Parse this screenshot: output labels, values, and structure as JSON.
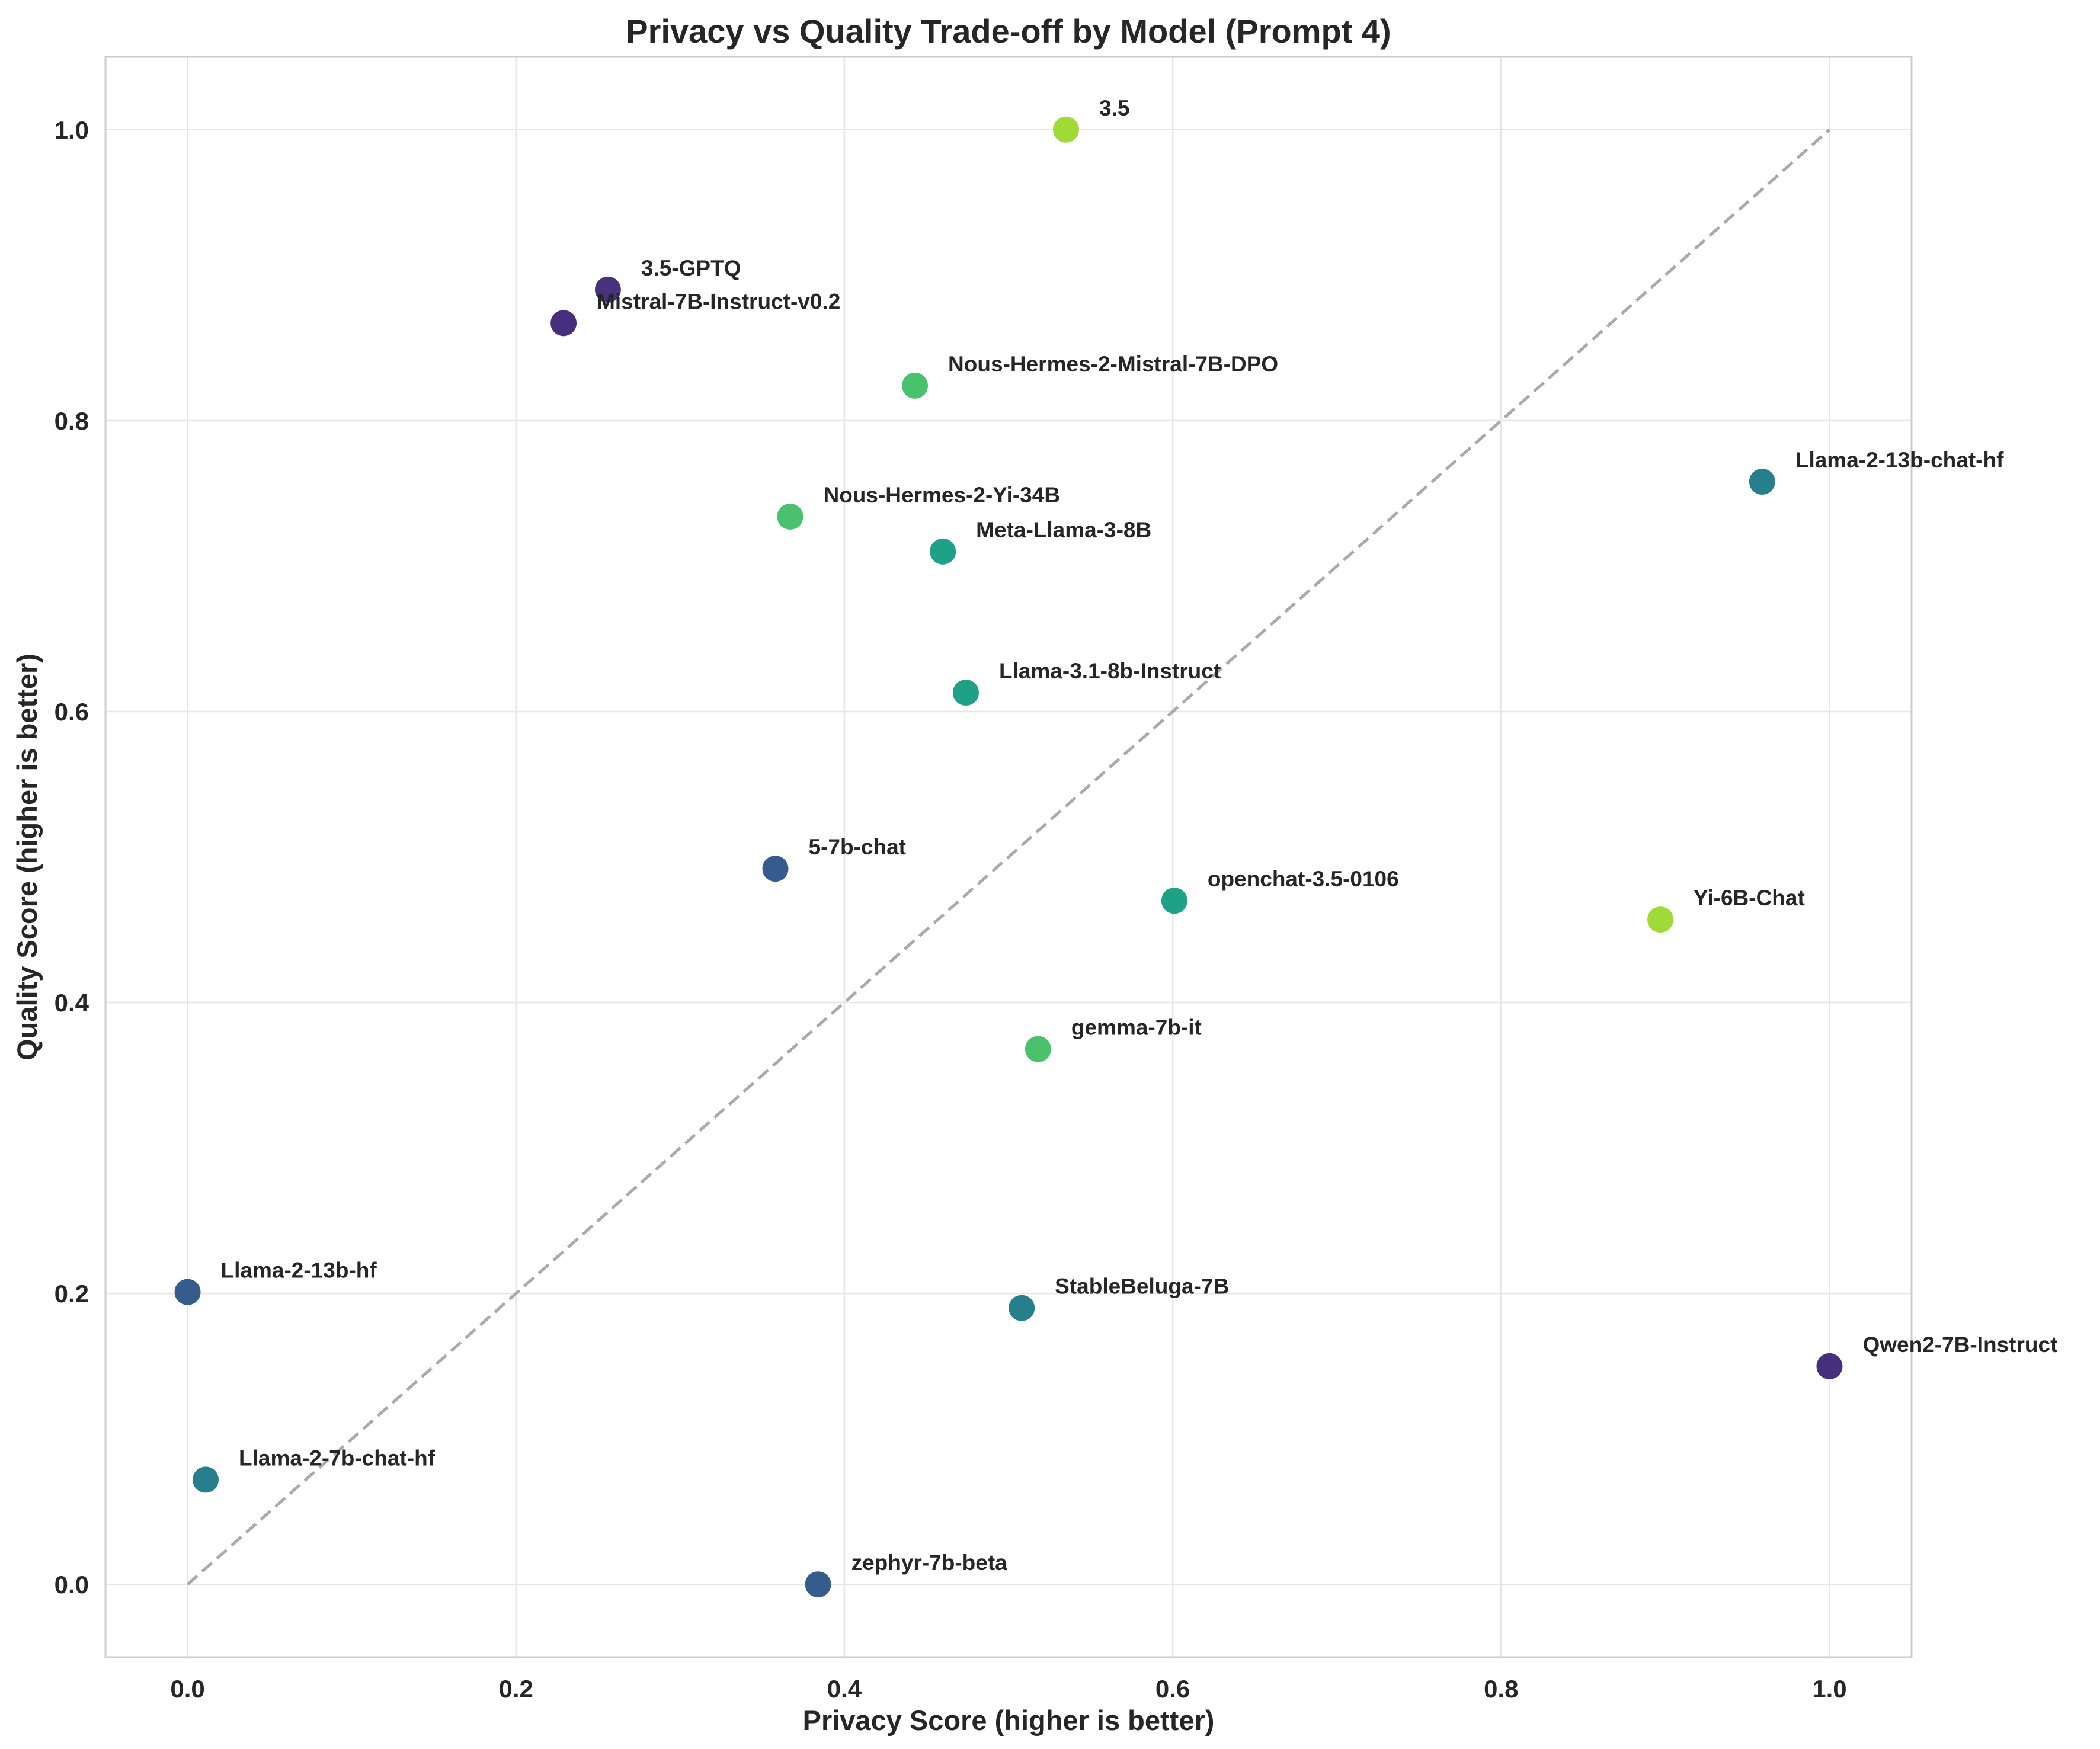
{
  "chart_data": {
    "type": "scatter",
    "title": "Privacy vs Quality Trade-off by Model (Prompt 4)",
    "xlabel": "Privacy Score (higher is better)",
    "ylabel": "Quality Score (higher is better)",
    "xlim": [
      -0.05,
      1.05
    ],
    "ylim": [
      -0.05,
      1.05
    ],
    "xticks": [
      "0.0",
      "0.2",
      "0.4",
      "0.6",
      "0.8",
      "1.0"
    ],
    "yticks": [
      "0.0",
      "0.2",
      "0.4",
      "0.6",
      "0.8",
      "1.0"
    ],
    "grid": true,
    "reference_line": {
      "style": "dashed",
      "from": [
        0,
        0
      ],
      "to": [
        1,
        1
      ],
      "color": "#aaaaaa"
    },
    "points": [
      {
        "label": "3.5",
        "x": 0.535,
        "y": 1.0,
        "color": "#a0da39"
      },
      {
        "label": "3.5-GPTQ",
        "x": 0.256,
        "y": 0.89,
        "color": "#46327e"
      },
      {
        "label": "Mistral-7B-Instruct-v0.2",
        "x": 0.229,
        "y": 0.867,
        "color": "#472f7d"
      },
      {
        "label": "Nous-Hermes-2-Mistral-7B-DPO",
        "x": 0.443,
        "y": 0.824,
        "color": "#4ac16d"
      },
      {
        "label": "Llama-2-13b-chat-hf",
        "x": 0.959,
        "y": 0.758,
        "color": "#277f8e"
      },
      {
        "label": "Nous-Hermes-2-Yi-34B",
        "x": 0.367,
        "y": 0.734,
        "color": "#4ac16d"
      },
      {
        "label": "Meta-Llama-3-8B",
        "x": 0.46,
        "y": 0.71,
        "color": "#1fa187"
      },
      {
        "label": "Llama-3.1-8b-Instruct",
        "x": 0.474,
        "y": 0.613,
        "color": "#1fa187"
      },
      {
        "label": "5-7b-chat",
        "x": 0.358,
        "y": 0.492,
        "color": "#365c8d"
      },
      {
        "label": "openchat-3.5-0106",
        "x": 0.601,
        "y": 0.47,
        "color": "#1fa187"
      },
      {
        "label": "Yi-6B-Chat",
        "x": 0.897,
        "y": 0.457,
        "color": "#a0da39"
      },
      {
        "label": "gemma-7b-it",
        "x": 0.518,
        "y": 0.368,
        "color": "#4ac16d"
      },
      {
        "label": "Llama-2-13b-hf",
        "x": 0.0,
        "y": 0.201,
        "color": "#365c8d"
      },
      {
        "label": "StableBeluga-7B",
        "x": 0.508,
        "y": 0.19,
        "color": "#277f8e"
      },
      {
        "label": "Qwen2-7B-Instruct",
        "x": 1.0,
        "y": 0.15,
        "color": "#472f7d"
      },
      {
        "label": "Llama-2-7b-chat-hf",
        "x": 0.011,
        "y": 0.072,
        "color": "#277f8e"
      },
      {
        "label": "zephyr-7b-beta",
        "x": 0.384,
        "y": 0.0,
        "color": "#365c8d"
      }
    ]
  }
}
